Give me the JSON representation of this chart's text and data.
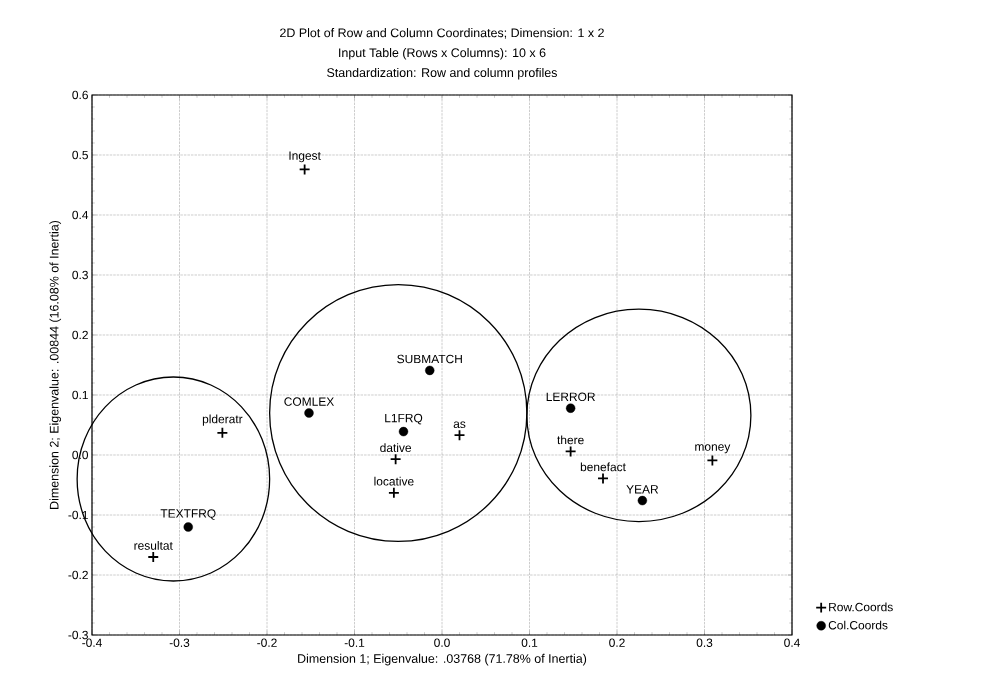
{
  "chart_data": {
    "type": "scatter",
    "title": "2D Plot of Row and Column Coordinates; Dimension: 1 x 2",
    "subtitle": "Input Table (Rows x Columns): 10 x 6",
    "xlabel": "Dimension 1; Eigenvalue: .03768 (71.78% of Inertia)",
    "ylabel": "Dimension 2; Eigenvalue: .00844 (16.08% of Inertia)",
    "xlim": [
      -0.4,
      0.4
    ],
    "ylim": [
      -0.3,
      0.6
    ],
    "xticks": [
      -0.4,
      -0.3,
      -0.2,
      -0.1,
      {
        "value": 0,
        "label": "0.0"
      },
      0.1,
      0.2,
      0.3,
      0.4
    ],
    "yticks": [
      -0.3,
      -0.2,
      -0.1,
      {
        "value": 0,
        "label": "0.0"
      },
      0.1,
      0.2,
      0.3,
      0.4,
      0.5,
      0.6
    ],
    "grid": true,
    "legend": "bottom right",
    "series": [
      {
        "name": "Row.Coords",
        "color": "#000000",
        "marker": "cross",
        "x": [
          -0.157,
          -0.251,
          -0.053,
          -0.055,
          0.02,
          0.147,
          0.184,
          0.309,
          -0.33
        ],
        "values": [
          0.476,
          0.037,
          -0.007,
          -0.063,
          0.033,
          0.006,
          -0.039,
          -0.009,
          -0.17
        ]
      },
      {
        "name": "Col.Coords",
        "color": "#000000",
        "marker": "circle",
        "x": [
          -0.152,
          -0.014,
          -0.044,
          0.147,
          0.229,
          -0.29
        ],
        "values": [
          0.07,
          0.141,
          0.039,
          0.078,
          -0.076,
          -0.12
        ]
      }
    ],
    "annotations": [
      "Standardization: Row and column profiles",
      {
        "text": "Ingest",
        "x": -0.157,
        "y": 0.476
      },
      {
        "text": "plderatr",
        "x": -0.251,
        "y": 0.037
      },
      {
        "text": "dative",
        "x": -0.053,
        "y": -0.007
      },
      {
        "text": "locative",
        "x": -0.055,
        "y": -0.063
      },
      {
        "text": "as",
        "x": 0.02,
        "y": 0.033
      },
      {
        "text": "there",
        "x": 0.147,
        "y": 0.006
      },
      {
        "text": "benefact",
        "x": 0.184,
        "y": -0.039
      },
      {
        "text": "money",
        "x": 0.309,
        "y": -0.009
      },
      {
        "text": "resultat",
        "x": -0.33,
        "y": -0.17
      },
      {
        "text": "COMLEX",
        "x": -0.152,
        "y": 0.07
      },
      {
        "text": "SUBMATCH",
        "x": -0.014,
        "y": 0.141
      },
      {
        "text": "L1FRQ",
        "x": -0.044,
        "y": 0.039
      },
      {
        "text": "LERROR",
        "x": 0.147,
        "y": 0.078
      },
      {
        "text": "YEAR",
        "x": 0.229,
        "y": -0.076
      },
      {
        "text": "TEXTFRQ",
        "x": -0.29,
        "y": -0.12
      }
    ]
  }
}
